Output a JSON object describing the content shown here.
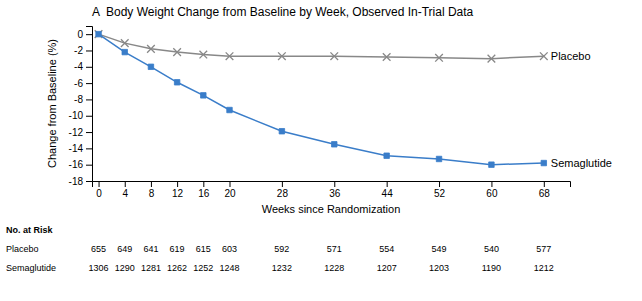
{
  "chart_data": {
    "type": "line",
    "title": "A  Body Weight Change from Baseline by Week, Observed In-Trial Data",
    "xlabel": "Weeks since Randomization",
    "ylabel": "Change from Baseline (%)",
    "x": [
      0,
      4,
      8,
      12,
      16,
      20,
      28,
      36,
      44,
      52,
      60,
      68
    ],
    "series": [
      {
        "name": "Placebo",
        "color": "#888888",
        "marker": "x",
        "values": [
          0,
          -1.1,
          -1.8,
          -2.2,
          -2.5,
          -2.7,
          -2.7,
          -2.7,
          -2.8,
          -2.9,
          -3.0,
          -2.7
        ],
        "at_risk": [
          655,
          649,
          641,
          619,
          615,
          603,
          592,
          571,
          554,
          549,
          540,
          577
        ]
      },
      {
        "name": "Semaglutide",
        "color": "#3a7dc9",
        "marker": "square",
        "values": [
          0,
          -2.2,
          -4.0,
          -5.9,
          -7.5,
          -9.3,
          -11.9,
          -13.5,
          -14.9,
          -15.3,
          -16.0,
          -15.8
        ],
        "at_risk": [
          1306,
          1290,
          1281,
          1262,
          1252,
          1248,
          1232,
          1228,
          1207,
          1203,
          1190,
          1212
        ]
      }
    ],
    "at_risk_label": "No. at Risk",
    "xlim": [
      -1,
      72
    ],
    "xticks": [
      0,
      4,
      8,
      12,
      16,
      20,
      28,
      36,
      44,
      52,
      60,
      68
    ],
    "ylim": [
      -18,
      1
    ],
    "yticks": [
      0,
      -2,
      -4,
      -6,
      -8,
      -10,
      -12,
      -14,
      -16,
      -18
    ]
  }
}
